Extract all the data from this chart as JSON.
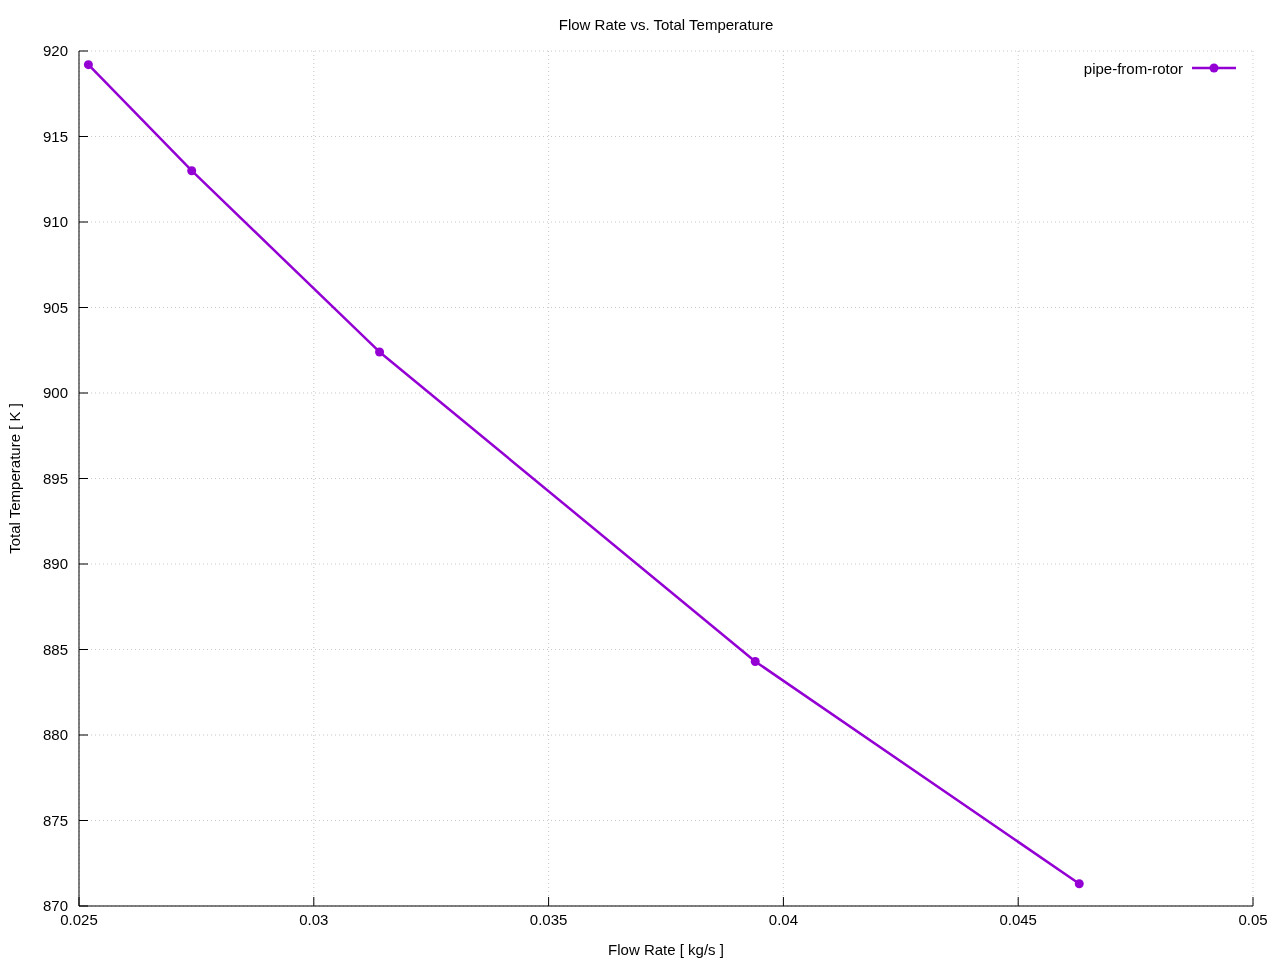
{
  "chart_data": {
    "type": "line",
    "title": "Flow Rate vs. Total Temperature",
    "xlabel": "Flow Rate [ kg/s ]",
    "ylabel": "Total Temperature [ K ]",
    "x": [
      0.0252,
      0.0274,
      0.0314,
      0.0394,
      0.0463
    ],
    "series": [
      {
        "name": "pipe-from-rotor",
        "color": "#9400d3",
        "values": [
          919.2,
          913.0,
          902.4,
          884.3,
          871.3
        ]
      }
    ],
    "xlim": [
      0.025,
      0.05
    ],
    "ylim": [
      870,
      920
    ],
    "xticks": [
      0.025,
      0.03,
      0.035,
      0.04,
      0.045,
      0.05
    ],
    "yticks": [
      870,
      875,
      880,
      885,
      890,
      895,
      900,
      905,
      910,
      915,
      920
    ],
    "grid": true,
    "legend": "top right",
    "marker": "circle",
    "line_style": "solid"
  }
}
